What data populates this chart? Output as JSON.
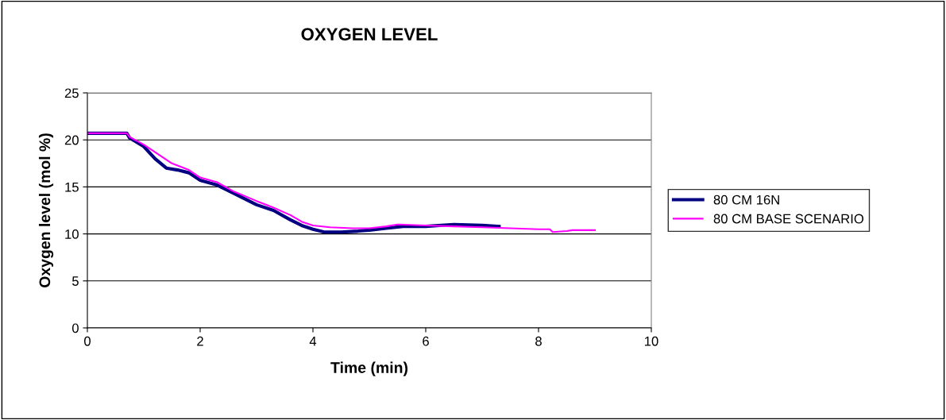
{
  "chart_data": {
    "type": "line",
    "title": "OXYGEN LEVEL",
    "xlabel": "Time (min)",
    "ylabel": "Oxygen level (mol %)",
    "xlim": [
      0,
      10
    ],
    "xticks": [
      0,
      2,
      4,
      6,
      8,
      10
    ],
    "ylim": [
      0,
      25
    ],
    "yticks": [
      0,
      5,
      10,
      15,
      20,
      25
    ],
    "grid": "y",
    "legend": "right",
    "series": [
      {
        "name": "80 CM 16N",
        "color": "#000080",
        "x": [
          0,
          0.7,
          0.75,
          1.0,
          1.2,
          1.4,
          1.6,
          1.8,
          2.0,
          2.3,
          2.6,
          3.0,
          3.3,
          3.6,
          3.8,
          4.0,
          4.2,
          4.5,
          4.8,
          5.0,
          5.3,
          5.6,
          6.0,
          6.5,
          7.0,
          7.3
        ],
        "values": [
          20.7,
          20.7,
          20.2,
          19.3,
          18.0,
          17.0,
          16.8,
          16.5,
          15.7,
          15.2,
          14.3,
          13.1,
          12.5,
          11.5,
          10.9,
          10.5,
          10.2,
          10.2,
          10.3,
          10.4,
          10.6,
          10.8,
          10.8,
          11.0,
          10.9,
          10.8
        ]
      },
      {
        "name": "80 CM BASE SCENARIO",
        "color": "#ff00ff",
        "x": [
          0,
          0.7,
          0.75,
          1.0,
          1.3,
          1.5,
          1.8,
          2.0,
          2.3,
          2.6,
          3.0,
          3.3,
          3.6,
          3.8,
          4.0,
          4.3,
          4.7,
          5.0,
          5.3,
          5.5,
          6.0,
          6.5,
          7.0,
          7.5,
          8.0,
          8.2,
          8.25,
          8.5,
          8.6,
          9.0
        ],
        "values": [
          20.7,
          20.7,
          20.3,
          19.5,
          18.3,
          17.5,
          16.8,
          16.0,
          15.5,
          14.5,
          13.5,
          12.8,
          12.0,
          11.3,
          10.9,
          10.7,
          10.6,
          10.6,
          10.8,
          11.0,
          10.9,
          10.8,
          10.7,
          10.6,
          10.5,
          10.5,
          10.2,
          10.3,
          10.4,
          10.4
        ]
      }
    ]
  }
}
